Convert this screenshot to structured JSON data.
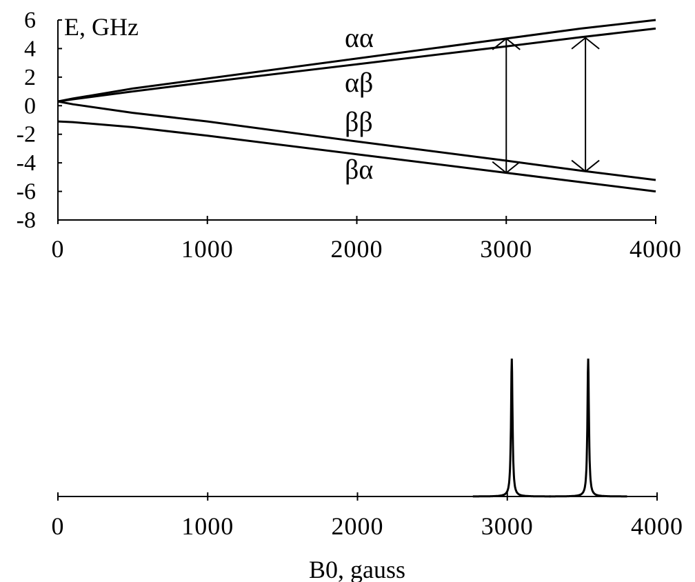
{
  "chart_data": [
    {
      "type": "line",
      "title": "",
      "ylabel": "E, GHz",
      "xlabel": "",
      "xlim": [
        0,
        4000
      ],
      "ylim": [
        -8,
        6
      ],
      "xticks": [
        "0",
        "1000",
        "2000",
        "3000",
        "4000"
      ],
      "yticks": [
        "6",
        "4",
        "2",
        "0",
        "-2",
        "-4",
        "-6",
        "-8"
      ],
      "grid": false,
      "series": [
        {
          "name": "αα",
          "x": [
            0,
            100,
            500,
            1000,
            2000,
            3000,
            3500,
            4000
          ],
          "y": [
            0.3,
            0.5,
            1.2,
            1.9,
            3.3,
            4.7,
            5.4,
            6.0
          ]
        },
        {
          "name": "αβ",
          "x": [
            0,
            100,
            500,
            1000,
            2000,
            3000,
            3500,
            4000
          ],
          "y": [
            0.3,
            0.45,
            1.0,
            1.65,
            2.9,
            4.15,
            4.8,
            5.4
          ]
        },
        {
          "name": "ββ",
          "x": [
            0,
            100,
            500,
            1000,
            2000,
            3000,
            3500,
            4000
          ],
          "y": [
            0.3,
            0.1,
            -0.5,
            -1.1,
            -2.5,
            -3.85,
            -4.55,
            -5.2
          ]
        },
        {
          "name": "βα",
          "x": [
            0,
            100,
            500,
            1000,
            2000,
            3000,
            3500,
            4000
          ],
          "y": [
            -1.1,
            -1.15,
            -1.5,
            -2.1,
            -3.4,
            -4.7,
            -5.35,
            -6.0
          ]
        }
      ],
      "annotations": [
        {
          "type": "double-arrow",
          "x": 3000,
          "y_from": -4.7,
          "y_to": 4.7
        },
        {
          "type": "double-arrow",
          "x": 3530,
          "y_from": -4.6,
          "y_to": 4.75
        }
      ]
    },
    {
      "type": "line",
      "title": "",
      "xlabel": "B0, gauss",
      "ylabel": "",
      "xlim": [
        0,
        4000
      ],
      "xticks": [
        "0",
        "1000",
        "2000",
        "3000",
        "4000"
      ],
      "grid": false,
      "peaks": [
        {
          "center": 3030,
          "height": 1.0,
          "width": 12
        },
        {
          "center": 3540,
          "height": 1.0,
          "width": 12
        }
      ]
    }
  ]
}
